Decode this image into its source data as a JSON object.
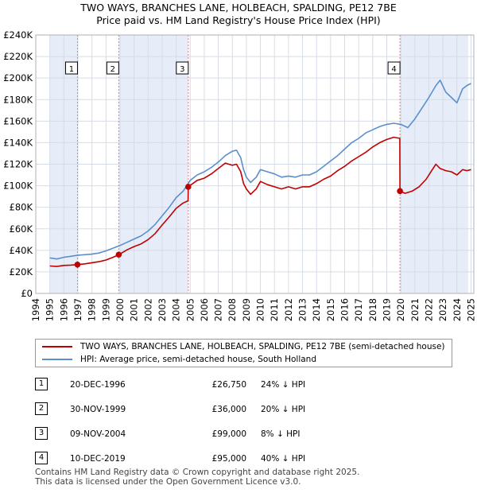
{
  "title": {
    "line1": "TWO WAYS, BRANCHES LANE, HOLBEACH, SPALDING, PE12 7BE",
    "line2": "Price paid vs. HM Land Registry's House Price Index (HPI)"
  },
  "colors": {
    "property": "#c00000",
    "hpi": "#5b8fcc",
    "band": "#e6edf8",
    "vline": "#e08080",
    "grid": "#d6dce6"
  },
  "chart_data": {
    "type": "line",
    "xlim": [
      1994.0,
      2025.2
    ],
    "ylim": [
      0,
      240000
    ],
    "yticks": [
      {
        "value": 0,
        "label": "£0"
      },
      {
        "value": 20000,
        "label": "£20K"
      },
      {
        "value": 40000,
        "label": "£40K"
      },
      {
        "value": 60000,
        "label": "£60K"
      },
      {
        "value": 80000,
        "label": "£80K"
      },
      {
        "value": 100000,
        "label": "£100K"
      },
      {
        "value": 120000,
        "label": "£120K"
      },
      {
        "value": 140000,
        "label": "£140K"
      },
      {
        "value": 160000,
        "label": "£160K"
      },
      {
        "value": 180000,
        "label": "£180K"
      },
      {
        "value": 200000,
        "label": "£200K"
      },
      {
        "value": 220000,
        "label": "£220K"
      },
      {
        "value": 240000,
        "label": "£240K"
      }
    ],
    "xticks": [
      "1994",
      "1995",
      "1996",
      "1997",
      "1998",
      "1999",
      "2000",
      "2001",
      "2002",
      "2003",
      "2004",
      "2005",
      "2006",
      "2007",
      "2008",
      "2009",
      "2010",
      "2011",
      "2012",
      "2013",
      "2014",
      "2015",
      "2016",
      "2017",
      "2018",
      "2019",
      "2020",
      "2021",
      "2022",
      "2023",
      "2024",
      "2025"
    ],
    "shaded_ranges": [
      [
        1995.0,
        1996.97
      ],
      [
        1999.91,
        2004.86
      ],
      [
        2019.94,
        2024.8
      ]
    ],
    "sales": [
      {
        "num": "1",
        "x": 1996.97,
        "price": 26750
      },
      {
        "num": "2",
        "x": 1999.91,
        "price": 36000
      },
      {
        "num": "3",
        "x": 2004.86,
        "price": 99000
      },
      {
        "num": "4",
        "x": 2019.94,
        "price": 95000
      }
    ],
    "series": [
      {
        "name": "TWO WAYS, BRANCHES LANE, HOLBEACH, SPALDING, PE12 7BE (semi-detached house)",
        "color": "#c00000",
        "points": [
          [
            1995.0,
            25500
          ],
          [
            1995.5,
            25000
          ],
          [
            1996.0,
            26000
          ],
          [
            1996.5,
            26300
          ],
          [
            1996.97,
            26750
          ],
          [
            1997.5,
            27500
          ],
          [
            1998.0,
            28500
          ],
          [
            1998.5,
            29500
          ],
          [
            1999.0,
            31000
          ],
          [
            1999.5,
            33500
          ],
          [
            1999.91,
            36000
          ],
          [
            2000.5,
            40500
          ],
          [
            2001.0,
            43500
          ],
          [
            2001.5,
            46000
          ],
          [
            2002.0,
            50000
          ],
          [
            2002.5,
            55500
          ],
          [
            2003.0,
            63500
          ],
          [
            2003.5,
            71000
          ],
          [
            2004.0,
            79000
          ],
          [
            2004.5,
            84000
          ],
          [
            2004.85,
            86000
          ],
          [
            2004.86,
            99000
          ],
          [
            2005.5,
            105000
          ],
          [
            2006.0,
            107000
          ],
          [
            2006.5,
            111000
          ],
          [
            2007.0,
            116000
          ],
          [
            2007.5,
            121000
          ],
          [
            2008.0,
            119000
          ],
          [
            2008.3,
            120000
          ],
          [
            2008.6,
            113000
          ],
          [
            2008.8,
            102000
          ],
          [
            2009.0,
            97000
          ],
          [
            2009.3,
            92000
          ],
          [
            2009.7,
            97000
          ],
          [
            2010.0,
            104000
          ],
          [
            2010.5,
            101000
          ],
          [
            2011.0,
            99000
          ],
          [
            2011.5,
            97000
          ],
          [
            2012.0,
            99000
          ],
          [
            2012.5,
            97000
          ],
          [
            2013.0,
            99000
          ],
          [
            2013.5,
            99000
          ],
          [
            2014.0,
            102000
          ],
          [
            2014.5,
            106000
          ],
          [
            2015.0,
            109000
          ],
          [
            2015.5,
            114000
          ],
          [
            2016.0,
            118000
          ],
          [
            2016.5,
            123000
          ],
          [
            2017.0,
            127000
          ],
          [
            2017.5,
            131000
          ],
          [
            2018.0,
            136000
          ],
          [
            2018.5,
            140000
          ],
          [
            2019.0,
            143000
          ],
          [
            2019.5,
            145000
          ],
          [
            2019.93,
            144000
          ],
          [
            2019.94,
            95000
          ],
          [
            2020.3,
            93000
          ],
          [
            2020.8,
            95000
          ],
          [
            2021.3,
            99000
          ],
          [
            2021.8,
            106000
          ],
          [
            2022.2,
            114000
          ],
          [
            2022.5,
            120000
          ],
          [
            2022.8,
            116000
          ],
          [
            2023.2,
            114000
          ],
          [
            2023.6,
            113000
          ],
          [
            2024.0,
            110000
          ],
          [
            2024.4,
            115000
          ],
          [
            2024.7,
            114000
          ],
          [
            2025.0,
            115000
          ]
        ]
      },
      {
        "name": "HPI: Average price, semi-detached house, South Holland",
        "color": "#5b8fcc",
        "points": [
          [
            1995.0,
            33000
          ],
          [
            1995.5,
            32000
          ],
          [
            1996.0,
            33500
          ],
          [
            1996.5,
            34500
          ],
          [
            1997.0,
            35500
          ],
          [
            1997.5,
            36000
          ],
          [
            1998.0,
            36500
          ],
          [
            1998.5,
            37500
          ],
          [
            1999.0,
            39500
          ],
          [
            1999.5,
            42000
          ],
          [
            2000.0,
            44500
          ],
          [
            2000.5,
            47500
          ],
          [
            2001.0,
            50500
          ],
          [
            2001.5,
            53500
          ],
          [
            2002.0,
            58000
          ],
          [
            2002.5,
            64000
          ],
          [
            2003.0,
            72000
          ],
          [
            2003.5,
            80000
          ],
          [
            2004.0,
            89000
          ],
          [
            2004.5,
            95000
          ],
          [
            2005.0,
            105000
          ],
          [
            2005.5,
            110000
          ],
          [
            2006.0,
            113000
          ],
          [
            2006.5,
            117000
          ],
          [
            2007.0,
            122000
          ],
          [
            2007.5,
            128000
          ],
          [
            2008.0,
            132000
          ],
          [
            2008.3,
            133000
          ],
          [
            2008.6,
            126000
          ],
          [
            2008.8,
            115000
          ],
          [
            2009.0,
            108000
          ],
          [
            2009.3,
            103000
          ],
          [
            2009.7,
            108000
          ],
          [
            2010.0,
            115000
          ],
          [
            2010.5,
            113000
          ],
          [
            2011.0,
            111000
          ],
          [
            2011.5,
            108000
          ],
          [
            2012.0,
            109000
          ],
          [
            2012.5,
            108000
          ],
          [
            2013.0,
            110000
          ],
          [
            2013.5,
            110000
          ],
          [
            2014.0,
            113000
          ],
          [
            2014.5,
            118000
          ],
          [
            2015.0,
            123000
          ],
          [
            2015.5,
            128000
          ],
          [
            2016.0,
            134000
          ],
          [
            2016.5,
            140000
          ],
          [
            2017.0,
            144000
          ],
          [
            2017.5,
            149000
          ],
          [
            2018.0,
            152000
          ],
          [
            2018.5,
            155000
          ],
          [
            2019.0,
            157000
          ],
          [
            2019.5,
            158000
          ],
          [
            2020.0,
            157000
          ],
          [
            2020.5,
            154000
          ],
          [
            2021.0,
            162000
          ],
          [
            2021.5,
            172000
          ],
          [
            2022.0,
            182000
          ],
          [
            2022.5,
            193000
          ],
          [
            2022.8,
            198000
          ],
          [
            2023.2,
            187000
          ],
          [
            2023.6,
            182000
          ],
          [
            2024.0,
            177000
          ],
          [
            2024.4,
            190000
          ],
          [
            2024.7,
            193000
          ],
          [
            2025.0,
            195000
          ]
        ]
      }
    ]
  },
  "legend": {
    "property": "TWO WAYS, BRANCHES LANE, HOLBEACH, SPALDING, PE12 7BE (semi-detached house)",
    "hpi": "HPI: Average price, semi-detached house, South Holland"
  },
  "sales_table": [
    {
      "num": "1",
      "date": "20-DEC-1996",
      "price": "£26,750",
      "hpi": "24% ↓ HPI"
    },
    {
      "num": "2",
      "date": "30-NOV-1999",
      "price": "£36,000",
      "hpi": "20% ↓ HPI"
    },
    {
      "num": "3",
      "date": "09-NOV-2004",
      "price": "£99,000",
      "hpi": "8% ↓ HPI"
    },
    {
      "num": "4",
      "date": "10-DEC-2019",
      "price": "£95,000",
      "hpi": "40% ↓ HPI"
    }
  ],
  "footer": {
    "line1": "Contains HM Land Registry data © Crown copyright and database right 2025.",
    "line2": "This data is licensed under the Open Government Licence v3.0."
  }
}
